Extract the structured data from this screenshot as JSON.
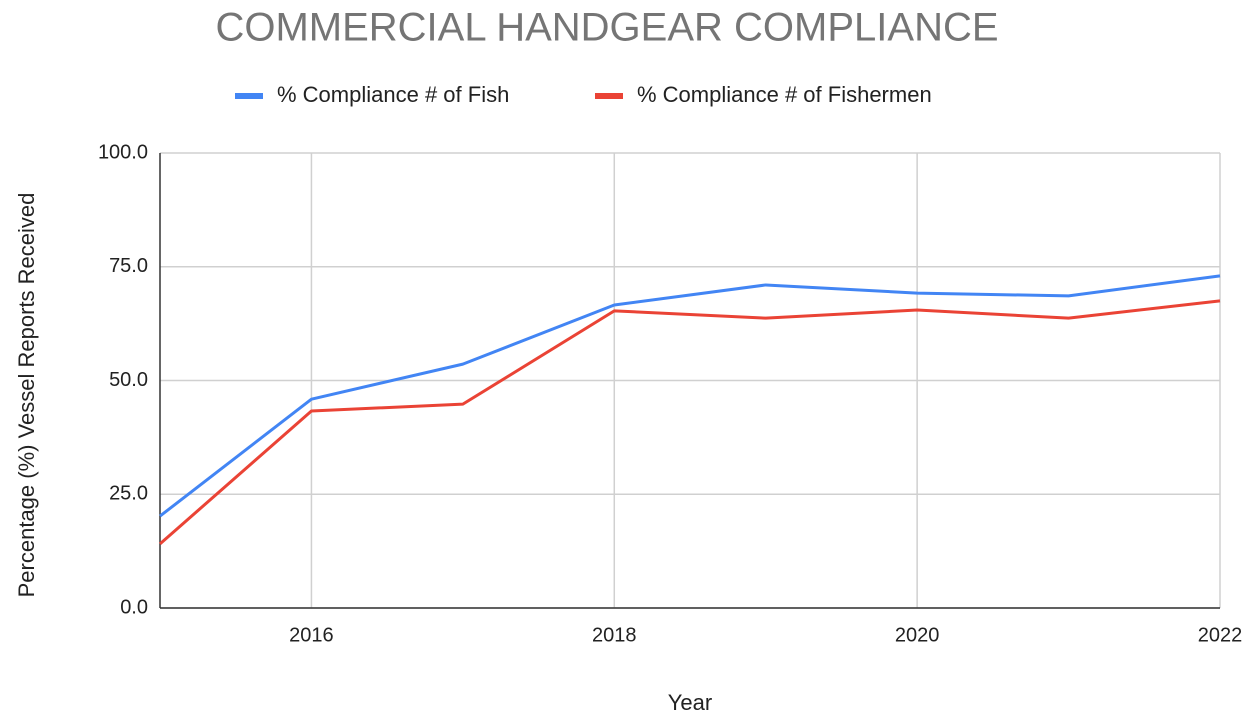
{
  "chart_data": {
    "type": "line",
    "title": "COMMERCIAL HANDGEAR COMPLIANCE",
    "x_label": "Year",
    "y_label": "Percentage (%) Vessel Reports Received",
    "x": [
      2015,
      2016,
      2017,
      2018,
      2019,
      2020,
      2021,
      2022
    ],
    "series": [
      {
        "name": "% Compliance # of Fish",
        "color": "#4285f4",
        "values": [
          20.2,
          45.9,
          53.6,
          66.6,
          71.0,
          69.2,
          68.6,
          73.0
        ]
      },
      {
        "name": "% Compliance # of Fishermen",
        "color": "#ea4335",
        "values": [
          14.1,
          43.3,
          44.8,
          65.3,
          63.7,
          65.5,
          63.7,
          67.5
        ]
      }
    ],
    "xlim": [
      2015,
      2022
    ],
    "xticks": [
      2016,
      2018,
      2020,
      2022
    ],
    "ylim": [
      0,
      100
    ],
    "yticks": [
      {
        "value": 0,
        "label": "0.0"
      },
      {
        "value": 25,
        "label": "25.0"
      },
      {
        "value": 50,
        "label": "50.0"
      },
      {
        "value": 75,
        "label": "75.0"
      },
      {
        "value": 100,
        "label": "100.0"
      }
    ],
    "grid": true,
    "legend": "top"
  }
}
